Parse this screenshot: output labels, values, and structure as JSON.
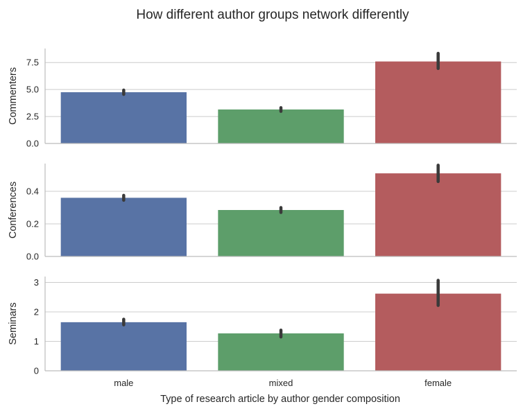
{
  "chart_data": {
    "type": "bar",
    "title": "How different author groups network differently",
    "xlabel": "Type of research article by author gender composition",
    "categories": [
      "male",
      "mixed",
      "female"
    ],
    "colors": [
      "#5873a5",
      "#5d9e6a",
      "#b45c5e"
    ],
    "error_bar_color": "#3a3a3a",
    "grid": true,
    "legend": "none",
    "panels": [
      {
        "ylabel": "Commenters",
        "ylim": [
          0,
          8.8
        ],
        "yticks": [
          0.0,
          2.5,
          5.0,
          7.5
        ],
        "ytick_labels": [
          "0.0",
          "2.5",
          "5.0",
          "7.5"
        ],
        "values": [
          4.75,
          3.15,
          7.6
        ],
        "ci": [
          [
            4.55,
            4.95
          ],
          [
            2.98,
            3.32
          ],
          [
            6.95,
            8.35
          ]
        ]
      },
      {
        "ylabel": "Conferences",
        "ylim": [
          0,
          0.57
        ],
        "yticks": [
          0.0,
          0.2,
          0.4
        ],
        "ytick_labels": [
          "0.0",
          "0.2",
          "0.4"
        ],
        "values": [
          0.36,
          0.285,
          0.51
        ],
        "ci": [
          [
            0.345,
            0.375
          ],
          [
            0.27,
            0.3
          ],
          [
            0.46,
            0.56
          ]
        ]
      },
      {
        "ylabel": "Seminars",
        "ylim": [
          0,
          3.2
        ],
        "yticks": [
          0,
          1,
          2,
          3
        ],
        "ytick_labels": [
          "0",
          "1",
          "2",
          "3"
        ],
        "values": [
          1.65,
          1.27,
          2.62
        ],
        "ci": [
          [
            1.56,
            1.75
          ],
          [
            1.15,
            1.38
          ],
          [
            2.22,
            3.07
          ]
        ]
      }
    ]
  }
}
